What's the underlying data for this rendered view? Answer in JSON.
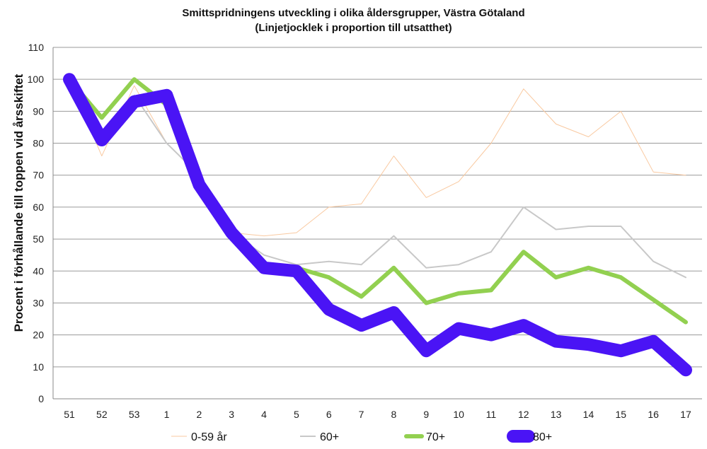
{
  "chart_data": {
    "type": "line",
    "title": "Smittspridningens utveckling i olika åldersgrupper, Västra Götaland",
    "subtitle": "(Linjetjocklek i proportion till utsatthet)",
    "ylabel": "Procent i förhållande till toppen vid årsskiftet",
    "xlabel": "",
    "ylim": [
      0,
      110
    ],
    "yticks": [
      0,
      10,
      20,
      30,
      40,
      50,
      60,
      70,
      80,
      90,
      100,
      110
    ],
    "grid": true,
    "legend_position": "bottom",
    "categories": [
      "51",
      "52",
      "53",
      "1",
      "2",
      "3",
      "4",
      "5",
      "6",
      "7",
      "8",
      "9",
      "10",
      "11",
      "12",
      "13",
      "14",
      "15",
      "16",
      "17"
    ],
    "series": [
      {
        "name": "0-59 år",
        "color": "#f9c9a0",
        "weight": 1,
        "values": [
          100,
          76,
          98,
          80,
          70,
          52,
          51,
          52,
          60,
          61,
          76,
          63,
          68,
          80,
          97,
          86,
          82,
          90,
          71,
          70
        ]
      },
      {
        "name": "60+",
        "color": "#c8c8c8",
        "weight": 2,
        "values": [
          100,
          80,
          95,
          80,
          70,
          52,
          45,
          42,
          43,
          42,
          51,
          41,
          42,
          46,
          60,
          53,
          54,
          54,
          43,
          38
        ]
      },
      {
        "name": "70+",
        "color": "#92d050",
        "weight": 6,
        "values": [
          100,
          88,
          100,
          92,
          68,
          52,
          41,
          41,
          38,
          32,
          41,
          30,
          33,
          34,
          46,
          38,
          41,
          38,
          31,
          24
        ]
      },
      {
        "name": "80+",
        "color": "#4a14f5",
        "weight": 18,
        "values": [
          100,
          81,
          93,
          95,
          67,
          52,
          41,
          40,
          28,
          23,
          27,
          15,
          22,
          20,
          23,
          18,
          17,
          15,
          18,
          9
        ]
      }
    ]
  }
}
